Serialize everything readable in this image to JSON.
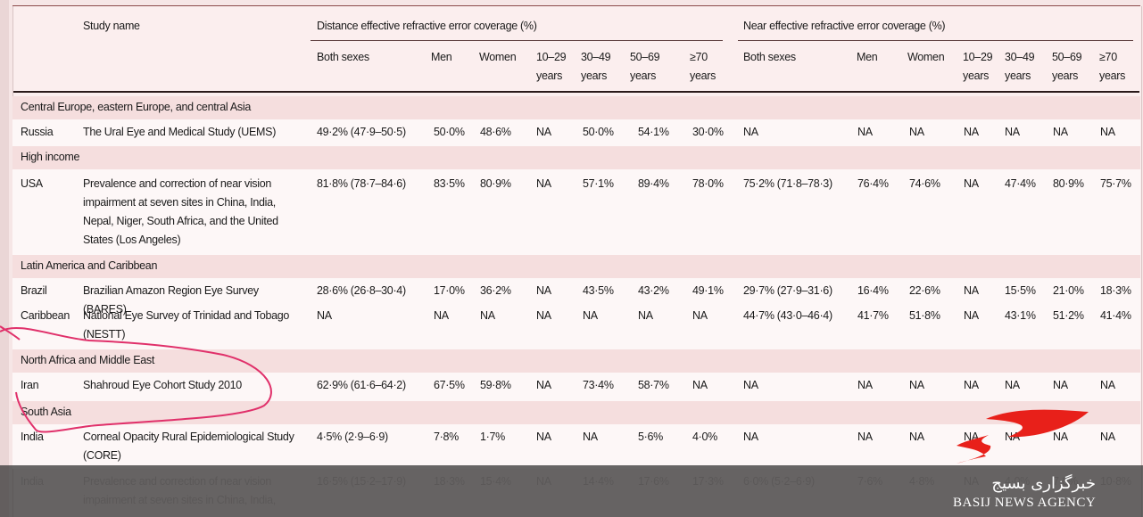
{
  "headers": {
    "study_name": "Study name",
    "distance_group": "Distance effective refractive error coverage (%)",
    "near_group": "Near effective refractive error coverage (%)",
    "distance_cols": [
      "Both sexes",
      "Men",
      "Women",
      "10–29 years",
      "30–49 years",
      "50–69 years",
      "≥70 years"
    ],
    "near_cols": [
      "Both sexes",
      "Men",
      "Women",
      "10–29 years",
      "30–49 years",
      "50–69 years",
      "≥70 years"
    ]
  },
  "sections": [
    "Central Europe, eastern Europe, and central Asia",
    "High income",
    "Latin America and Caribbean",
    "North Africa and Middle East",
    "South Asia"
  ],
  "rows": [
    {
      "country": "Russia",
      "study": "The Ural Eye and Medical Study (UEMS)",
      "d": [
        "49·2% (47·9–50·5)",
        "50·0%",
        "48·6%",
        "NA",
        "50·0%",
        "54·1%",
        "30·0%"
      ],
      "n": [
        "NA",
        "NA",
        "NA",
        "NA",
        "NA",
        "NA",
        "NA"
      ]
    },
    {
      "country": "USA",
      "study": "Prevalence and correction of near vision impairment at seven sites in China, India, Nepal, Niger, South Africa, and the United States (Los Angeles)",
      "d": [
        "81·8% (78·7–84·6)",
        "83·5%",
        "80·9%",
        "NA",
        "57·1%",
        "89·4%",
        "78·0%"
      ],
      "n": [
        "75·2% (71·8–78·3)",
        "76·4%",
        "74·6%",
        "NA",
        "47·4%",
        "80·9%",
        "75·7%"
      ]
    },
    {
      "country": "Brazil",
      "study": "Brazilian Amazon Region Eye Survey (BARES)",
      "d": [
        "28·6% (26·8–30·4)",
        "17·0%",
        "36·2%",
        "NA",
        "43·5%",
        "43·2%",
        "49·1%"
      ],
      "n": [
        "29·7% (27·9–31·6)",
        "16·4%",
        "22·6%",
        "NA",
        "15·5%",
        "21·0%",
        "18·3%"
      ]
    },
    {
      "country": "Caribbean",
      "study": "National Eye Survey of Trinidad and Tobago (NESTT)",
      "d": [
        "NA",
        "NA",
        "NA",
        "NA",
        "NA",
        "NA",
        "NA"
      ],
      "n": [
        "44·7% (43·0–46·4)",
        "41·7%",
        "51·8%",
        "NA",
        "43·1%",
        "51·2%",
        "41·4%"
      ]
    },
    {
      "country": "Iran",
      "study": "Shahroud Eye Cohort Study 2010",
      "d": [
        "62·9% (61·6–64·2)",
        "67·5%",
        "59·8%",
        "NA",
        "73·4%",
        "58·7%",
        "NA"
      ],
      "n": [
        "NA",
        "NA",
        "NA",
        "NA",
        "NA",
        "NA",
        "NA"
      ]
    },
    {
      "country": "India",
      "study": "Corneal Opacity Rural Epidemiological Study (CORE)",
      "d": [
        "4·5% (2·9–6·9)",
        "7·8%",
        "1·7%",
        "NA",
        "NA",
        "5·6%",
        "4·0%"
      ],
      "n": [
        "NA",
        "NA",
        "NA",
        "NA",
        "NA",
        "NA",
        "NA"
      ]
    },
    {
      "country": "India",
      "study": "Prevalence and correction of near vision impairment at seven sites in China, India,",
      "d": [
        "16·5% (15·2–17·9)",
        "18·3%",
        "15·4%",
        "NA",
        "14·4%",
        "17·6%",
        "17·3%"
      ],
      "n": [
        "6·0% (5·2–6·9)",
        "7·6%",
        "4·8%",
        "NA",
        "4·0%",
        "7·8%",
        "10·8%"
      ]
    }
  ],
  "watermark": {
    "fa": "خبرگزاری بسیج",
    "en": "BASIJ NEWS AGENCY",
    "accent": "#e8201a"
  },
  "colors": {
    "background": "#fbeeee",
    "section_band": "#f5dede",
    "annotation": "#e0306a"
  }
}
